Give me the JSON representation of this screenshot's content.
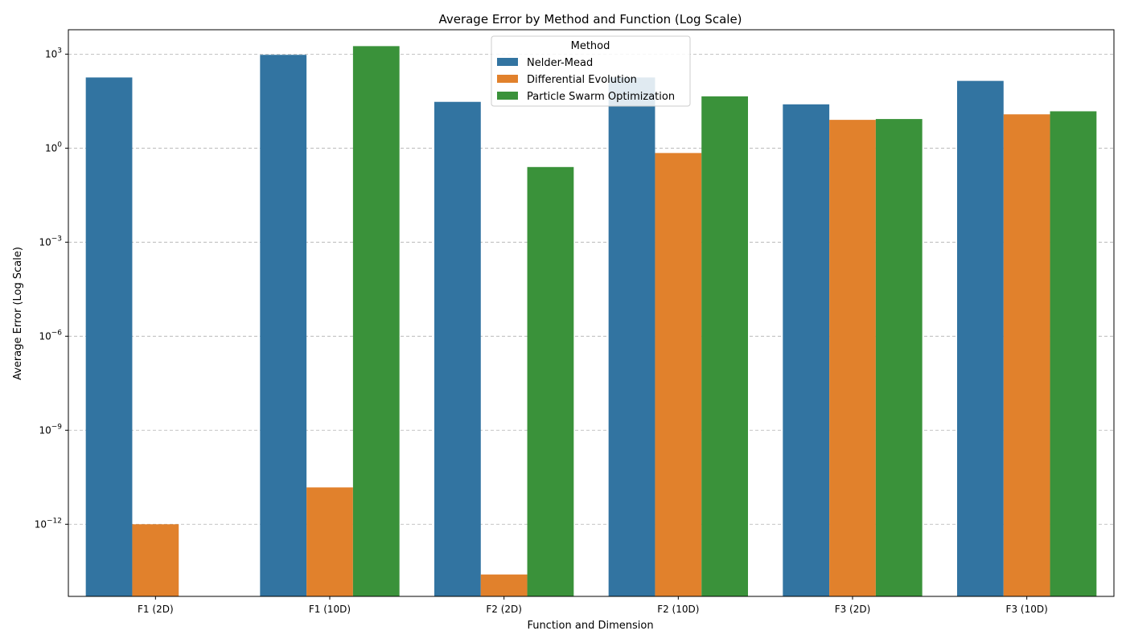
{
  "chart_data": {
    "type": "bar",
    "title": "Average Error by Method and Function (Log Scale)",
    "xlabel": "Function and Dimension",
    "ylabel": "Average Error (Log Scale)",
    "y_scale": "log",
    "ylim": [
      5e-15,
      6000
    ],
    "y_ticks": [
      {
        "value": 1000.0,
        "base": "10",
        "exp": "3"
      },
      {
        "value": 1.0,
        "base": "10",
        "exp": "0"
      },
      {
        "value": 0.001,
        "base": "10",
        "exp": "−3"
      },
      {
        "value": 1e-06,
        "base": "10",
        "exp": "−6"
      },
      {
        "value": 1e-09,
        "base": "10",
        "exp": "−9"
      },
      {
        "value": 1e-12,
        "base": "10",
        "exp": "−12"
      }
    ],
    "grid": "horizontal dashed",
    "legend_title": "Method",
    "legend_position": "top-center",
    "categories": [
      "F1 (2D)",
      "F1 (10D)",
      "F2 (2D)",
      "F2 (10D)",
      "F3 (2D)",
      "F3 (10D)"
    ],
    "series": [
      {
        "name": "Nelder-Mead",
        "color": "#3274a1",
        "values": [
          180,
          950,
          30,
          180,
          25,
          140
        ]
      },
      {
        "name": "Differential Evolution",
        "color": "#e1812c",
        "values": [
          1e-12,
          1.5e-11,
          2.5e-14,
          0.7,
          8,
          12
        ]
      },
      {
        "name": "Particle Swarm Optimization",
        "color": "#3a923a",
        "values": [
          null,
          1800,
          0.25,
          45,
          8.5,
          15
        ]
      }
    ]
  }
}
